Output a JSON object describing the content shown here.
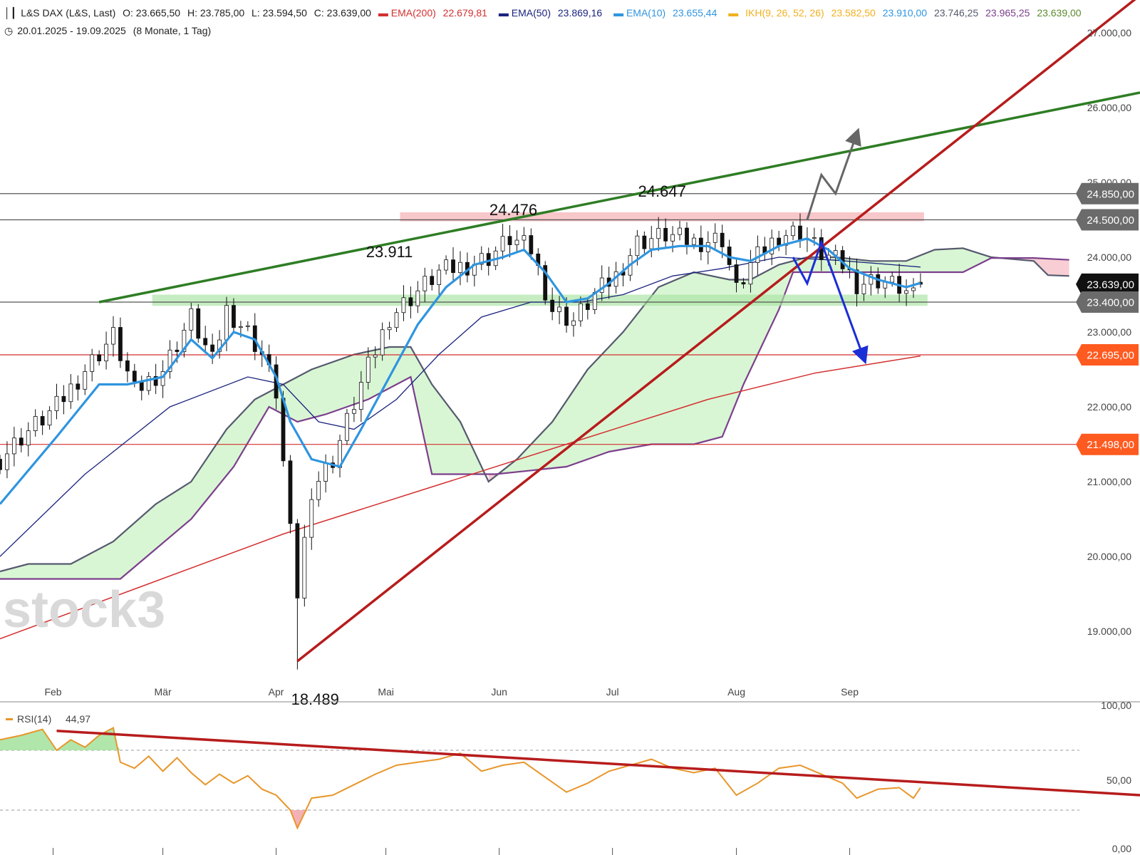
{
  "header": {
    "instrument_icon": "candlestick-icon",
    "title": "L&S DAX (L&S, Last)",
    "ohlc": {
      "open": "O: 23.665,50",
      "high": "H: 23.785,00",
      "low": "L: 23.594,50",
      "close": "C: 23.639,00"
    },
    "indicators": [
      {
        "name": "EMA(200)",
        "value": "22.679,81",
        "color": "#d32f2f"
      },
      {
        "name": "EMA(50)",
        "value": "23.869,16",
        "color": "#1a237e"
      },
      {
        "name": "EMA(10)",
        "value": "23.655,44",
        "color": "#2f95e0"
      }
    ],
    "ikh": {
      "name": "IKH(9, 26, 52, 26)",
      "values": [
        {
          "v": "23.582,50",
          "color": "#f2b01e"
        },
        {
          "v": "23.910,00",
          "color": "#2f95e0"
        },
        {
          "v": "23.746,25",
          "color": "#555a6e"
        },
        {
          "v": "23.965,25",
          "color": "#7b3f8c"
        },
        {
          "v": "23.639,00",
          "color": "#5c8a2e"
        }
      ]
    },
    "clock_icon": "clock-icon",
    "range": "20.01.2025 - 19.09.2025",
    "interval": "(8 Monate, 1 Tag)"
  },
  "watermark": "stock3",
  "colors": {
    "up": "#ffffff",
    "down": "#111111",
    "ema10": "#2f95e0",
    "ema50": "#1a237e",
    "ema200": "#d32f2f",
    "cloud_green": "#d5f5cf",
    "cloud_red": "#f7c9cf",
    "span_a": "#555a6e",
    "span_b": "#7b3f8c",
    "green_trend": "#2e7d24",
    "red_trend": "#b71c1c",
    "rsi": "#e8962a",
    "resistance_zone": "#f3a9ad",
    "support_zone": "#a7e3a1"
  },
  "chart_data": [
    {
      "type": "candlestick",
      "title": "L&S DAX (L&S, Last)",
      "x_axis_labels": [
        "Feb",
        "Mär",
        "Apr",
        "Mai",
        "Jun",
        "Jul",
        "Aug",
        "Sep"
      ],
      "y_axis_labels": [
        "19.000,00",
        "20.000,00",
        "21.000,00",
        "22.000,00",
        "23.000,00",
        "24.000,00",
        "25.000,00",
        "26.000,00",
        "27.000,00"
      ],
      "ylim": [
        18000,
        27500
      ],
      "price_tags": [
        {
          "label": "24.850,00",
          "value": 24850,
          "color": "#6b6b6b"
        },
        {
          "label": "24.500,00",
          "value": 24500,
          "color": "#6b6b6b"
        },
        {
          "label": "23.639,00",
          "value": 23639,
          "color": "#111111"
        },
        {
          "label": "23.400,00",
          "value": 23400,
          "color": "#6b6b6b"
        },
        {
          "label": "22.695,00",
          "value": 22695,
          "color": "#ff5a1f"
        },
        {
          "label": "21.498,00",
          "value": 21498,
          "color": "#ff5a1f"
        }
      ],
      "annotations": [
        {
          "text": "24.647",
          "value": 24647
        },
        {
          "text": "24.476",
          "value": 24476
        },
        {
          "text": "23.911",
          "value": 23911
        },
        {
          "text": "18.489",
          "value": 18489
        }
      ],
      "horizontal_lines": [
        24850,
        24500,
        23400,
        22695,
        21498
      ],
      "resistance_zone": [
        24480,
        24600
      ],
      "support_zone": [
        23350,
        23500
      ],
      "close_path": [
        {
          "t": 0,
          "v": 21300
        },
        {
          "t": 3,
          "v": 21600
        },
        {
          "t": 8,
          "v": 22000
        },
        {
          "t": 12,
          "v": 22500
        },
        {
          "t": 16,
          "v": 22950
        },
        {
          "t": 19,
          "v": 22200
        },
        {
          "t": 23,
          "v": 22500
        },
        {
          "t": 27,
          "v": 23200
        },
        {
          "t": 30,
          "v": 22600
        },
        {
          "t": 32,
          "v": 23300
        },
        {
          "t": 35,
          "v": 23000
        },
        {
          "t": 37,
          "v": 22700
        },
        {
          "t": 39,
          "v": 22200
        },
        {
          "t": 41,
          "v": 20300
        },
        {
          "t": 42,
          "v": 19500
        },
        {
          "t": 44,
          "v": 20900
        },
        {
          "t": 47,
          "v": 21300
        },
        {
          "t": 51,
          "v": 22300
        },
        {
          "t": 55,
          "v": 23200
        },
        {
          "t": 59,
          "v": 23550
        },
        {
          "t": 62,
          "v": 23800
        },
        {
          "t": 66,
          "v": 23900
        },
        {
          "t": 69,
          "v": 24000
        },
        {
          "t": 72,
          "v": 24250
        },
        {
          "t": 75,
          "v": 24100
        },
        {
          "t": 78,
          "v": 23300
        },
        {
          "t": 81,
          "v": 23150
        },
        {
          "t": 84,
          "v": 23500
        },
        {
          "t": 87,
          "v": 23750
        },
        {
          "t": 90,
          "v": 24200
        },
        {
          "t": 94,
          "v": 24300
        },
        {
          "t": 98,
          "v": 24200
        },
        {
          "t": 102,
          "v": 24250
        },
        {
          "t": 104,
          "v": 23550
        },
        {
          "t": 106,
          "v": 23900
        },
        {
          "t": 110,
          "v": 24300
        },
        {
          "t": 113,
          "v": 24350
        },
        {
          "t": 116,
          "v": 24050
        },
        {
          "t": 119,
          "v": 23900
        },
        {
          "t": 121,
          "v": 23650
        },
        {
          "t": 124,
          "v": 23700
        },
        {
          "t": 127,
          "v": 23600
        },
        {
          "t": 129,
          "v": 23450
        },
        {
          "t": 130,
          "v": 23639
        }
      ],
      "ema10_path": [
        {
          "t": 0,
          "v": 20700
        },
        {
          "t": 8,
          "v": 21600
        },
        {
          "t": 14,
          "v": 22300
        },
        {
          "t": 18,
          "v": 22300
        },
        {
          "t": 23,
          "v": 22400
        },
        {
          "t": 27,
          "v": 22900
        },
        {
          "t": 30,
          "v": 22650
        },
        {
          "t": 33,
          "v": 23000
        },
        {
          "t": 36,
          "v": 22900
        },
        {
          "t": 39,
          "v": 22400
        },
        {
          "t": 41,
          "v": 21800
        },
        {
          "t": 44,
          "v": 21300
        },
        {
          "t": 48,
          "v": 21200
        },
        {
          "t": 51,
          "v": 21700
        },
        {
          "t": 55,
          "v": 22400
        },
        {
          "t": 59,
          "v": 23100
        },
        {
          "t": 63,
          "v": 23600
        },
        {
          "t": 67,
          "v": 23900
        },
        {
          "t": 71,
          "v": 24000
        },
        {
          "t": 74,
          "v": 24100
        },
        {
          "t": 77,
          "v": 23800
        },
        {
          "t": 80,
          "v": 23400
        },
        {
          "t": 83,
          "v": 23450
        },
        {
          "t": 86,
          "v": 23650
        },
        {
          "t": 89,
          "v": 23900
        },
        {
          "t": 92,
          "v": 24100
        },
        {
          "t": 96,
          "v": 24150
        },
        {
          "t": 100,
          "v": 24150
        },
        {
          "t": 103,
          "v": 24000
        },
        {
          "t": 106,
          "v": 23950
        },
        {
          "t": 110,
          "v": 24150
        },
        {
          "t": 114,
          "v": 24250
        },
        {
          "t": 117,
          "v": 24100
        },
        {
          "t": 120,
          "v": 23850
        },
        {
          "t": 124,
          "v": 23700
        },
        {
          "t": 128,
          "v": 23600
        },
        {
          "t": 130,
          "v": 23655
        }
      ],
      "ema50_path": [
        {
          "t": 0,
          "v": 20000
        },
        {
          "t": 12,
          "v": 21100
        },
        {
          "t": 24,
          "v": 22000
        },
        {
          "t": 35,
          "v": 22400
        },
        {
          "t": 40,
          "v": 22300
        },
        {
          "t": 45,
          "v": 21800
        },
        {
          "t": 50,
          "v": 21700
        },
        {
          "t": 56,
          "v": 22100
        },
        {
          "t": 62,
          "v": 22700
        },
        {
          "t": 68,
          "v": 23200
        },
        {
          "t": 75,
          "v": 23400
        },
        {
          "t": 82,
          "v": 23400
        },
        {
          "t": 88,
          "v": 23500
        },
        {
          "t": 95,
          "v": 23750
        },
        {
          "t": 102,
          "v": 23850
        },
        {
          "t": 110,
          "v": 24000
        },
        {
          "t": 118,
          "v": 23960
        },
        {
          "t": 126,
          "v": 23900
        },
        {
          "t": 130,
          "v": 23869
        }
      ],
      "ema200_path": [
        {
          "t": 0,
          "v": 18900
        },
        {
          "t": 20,
          "v": 19600
        },
        {
          "t": 40,
          "v": 20300
        },
        {
          "t": 60,
          "v": 20900
        },
        {
          "t": 80,
          "v": 21500
        },
        {
          "t": 100,
          "v": 22100
        },
        {
          "t": 115,
          "v": 22450
        },
        {
          "t": 130,
          "v": 22680
        }
      ],
      "cloud_span_a": [
        {
          "t": 0,
          "v": 19800
        },
        {
          "t": 4,
          "v": 19900
        },
        {
          "t": 10,
          "v": 19900
        },
        {
          "t": 16,
          "v": 20200
        },
        {
          "t": 22,
          "v": 20700
        },
        {
          "t": 27,
          "v": 21000
        },
        {
          "t": 32,
          "v": 21700
        },
        {
          "t": 36,
          "v": 22100
        },
        {
          "t": 40,
          "v": 22300
        },
        {
          "t": 44,
          "v": 22500
        },
        {
          "t": 50,
          "v": 22700
        },
        {
          "t": 55,
          "v": 22800
        },
        {
          "t": 58,
          "v": 22800
        },
        {
          "t": 61,
          "v": 22300
        },
        {
          "t": 65,
          "v": 21800
        },
        {
          "t": 69,
          "v": 21000
        },
        {
          "t": 73,
          "v": 21300
        },
        {
          "t": 78,
          "v": 21800
        },
        {
          "t": 83,
          "v": 22500
        },
        {
          "t": 88,
          "v": 23000
        },
        {
          "t": 93,
          "v": 23600
        },
        {
          "t": 98,
          "v": 23800
        },
        {
          "t": 103,
          "v": 23700
        },
        {
          "t": 106,
          "v": 23700
        },
        {
          "t": 110,
          "v": 23900
        },
        {
          "t": 114,
          "v": 24000
        },
        {
          "t": 118,
          "v": 24000
        },
        {
          "t": 123,
          "v": 23950
        },
        {
          "t": 128,
          "v": 23950
        },
        {
          "t": 132,
          "v": 24100
        },
        {
          "t": 136,
          "v": 24120
        },
        {
          "t": 140,
          "v": 24000
        },
        {
          "t": 146,
          "v": 23950
        },
        {
          "t": 148,
          "v": 23760
        },
        {
          "t": 151,
          "v": 23750
        }
      ],
      "cloud_span_b": [
        {
          "t": 0,
          "v": 19700
        },
        {
          "t": 10,
          "v": 19700
        },
        {
          "t": 17,
          "v": 19700
        },
        {
          "t": 22,
          "v": 20100
        },
        {
          "t": 27,
          "v": 20500
        },
        {
          "t": 33,
          "v": 21200
        },
        {
          "t": 38,
          "v": 22000
        },
        {
          "t": 42,
          "v": 21800
        },
        {
          "t": 46,
          "v": 21900
        },
        {
          "t": 52,
          "v": 22100
        },
        {
          "t": 58,
          "v": 22400
        },
        {
          "t": 61,
          "v": 21100
        },
        {
          "t": 65,
          "v": 21100
        },
        {
          "t": 70,
          "v": 21100
        },
        {
          "t": 75,
          "v": 21150
        },
        {
          "t": 80,
          "v": 21200
        },
        {
          "t": 86,
          "v": 21400
        },
        {
          "t": 92,
          "v": 21500
        },
        {
          "t": 98,
          "v": 21500
        },
        {
          "t": 102,
          "v": 21600
        },
        {
          "t": 105,
          "v": 22300
        },
        {
          "t": 107,
          "v": 22700
        },
        {
          "t": 110,
          "v": 23300
        },
        {
          "t": 112,
          "v": 23800
        },
        {
          "t": 116,
          "v": 23800
        },
        {
          "t": 124,
          "v": 23800
        },
        {
          "t": 130,
          "v": 23800
        },
        {
          "t": 136,
          "v": 23800
        },
        {
          "t": 140,
          "v": 23990
        },
        {
          "t": 146,
          "v": 23990
        },
        {
          "t": 151,
          "v": 23965
        }
      ],
      "trend_lines": [
        {
          "name": "green-upper-trendline",
          "color": "#2e7d24",
          "from": {
            "t": 14,
            "v": 23400
          },
          "to": {
            "t": 161,
            "v": 26200
          }
        },
        {
          "name": "red-support-trendline",
          "color": "#b71c1c",
          "from": {
            "t": 42,
            "v": 18600
          },
          "to": {
            "t": 161,
            "v": 27500
          }
        }
      ],
      "scenario_arrows": [
        {
          "name": "gray-bullish-scenario",
          "color": "#666666",
          "points": [
            {
              "t": 114,
              "v": 24500
            },
            {
              "t": 116,
              "v": 25100
            },
            {
              "t": 118,
              "v": 24850
            },
            {
              "t": 121,
              "v": 25650
            }
          ]
        },
        {
          "name": "blue-bearish-scenario",
          "color": "#1c2ed6",
          "points": [
            {
              "t": 112,
              "v": 24000
            },
            {
              "t": 114,
              "v": 23650
            },
            {
              "t": 116,
              "v": 24200
            },
            {
              "t": 122,
              "v": 22650
            }
          ]
        }
      ]
    },
    {
      "type": "line",
      "title": "RSI(14)",
      "legend": "RSI(14)",
      "value_label": "44,97",
      "y_axis_labels": [
        "0,00",
        "50,00",
        "100,00"
      ],
      "ylim": [
        0,
        100
      ],
      "levels": [
        70,
        30
      ],
      "rsi_path": [
        {
          "t": 0,
          "v": 77
        },
        {
          "t": 3,
          "v": 80
        },
        {
          "t": 6,
          "v": 84
        },
        {
          "t": 8,
          "v": 70
        },
        {
          "t": 10,
          "v": 77
        },
        {
          "t": 12,
          "v": 72
        },
        {
          "t": 14,
          "v": 80
        },
        {
          "t": 16,
          "v": 85
        },
        {
          "t": 17,
          "v": 62
        },
        {
          "t": 19,
          "v": 58
        },
        {
          "t": 21,
          "v": 66
        },
        {
          "t": 23,
          "v": 56
        },
        {
          "t": 25,
          "v": 65
        },
        {
          "t": 27,
          "v": 55
        },
        {
          "t": 29,
          "v": 47
        },
        {
          "t": 31,
          "v": 54
        },
        {
          "t": 33,
          "v": 48
        },
        {
          "t": 35,
          "v": 53
        },
        {
          "t": 37,
          "v": 44
        },
        {
          "t": 39,
          "v": 40
        },
        {
          "t": 41,
          "v": 30
        },
        {
          "t": 42,
          "v": 18
        },
        {
          "t": 44,
          "v": 38
        },
        {
          "t": 47,
          "v": 40
        },
        {
          "t": 50,
          "v": 47
        },
        {
          "t": 53,
          "v": 54
        },
        {
          "t": 56,
          "v": 60
        },
        {
          "t": 59,
          "v": 62
        },
        {
          "t": 62,
          "v": 64
        },
        {
          "t": 65,
          "v": 68
        },
        {
          "t": 68,
          "v": 56
        },
        {
          "t": 71,
          "v": 60
        },
        {
          "t": 74,
          "v": 62
        },
        {
          "t": 77,
          "v": 52
        },
        {
          "t": 80,
          "v": 42
        },
        {
          "t": 83,
          "v": 48
        },
        {
          "t": 86,
          "v": 56
        },
        {
          "t": 89,
          "v": 60
        },
        {
          "t": 92,
          "v": 64
        },
        {
          "t": 95,
          "v": 58
        },
        {
          "t": 98,
          "v": 55
        },
        {
          "t": 101,
          "v": 58
        },
        {
          "t": 104,
          "v": 40
        },
        {
          "t": 107,
          "v": 48
        },
        {
          "t": 110,
          "v": 58
        },
        {
          "t": 113,
          "v": 60
        },
        {
          "t": 116,
          "v": 54
        },
        {
          "t": 119,
          "v": 48
        },
        {
          "t": 121,
          "v": 38
        },
        {
          "t": 124,
          "v": 44
        },
        {
          "t": 127,
          "v": 45
        },
        {
          "t": 129,
          "v": 38
        },
        {
          "t": 130,
          "v": 45
        }
      ],
      "trend_line": {
        "color": "#b71c1c",
        "from": {
          "t": 8,
          "v": 83
        },
        "to": {
          "t": 161,
          "v": 40
        }
      }
    }
  ]
}
